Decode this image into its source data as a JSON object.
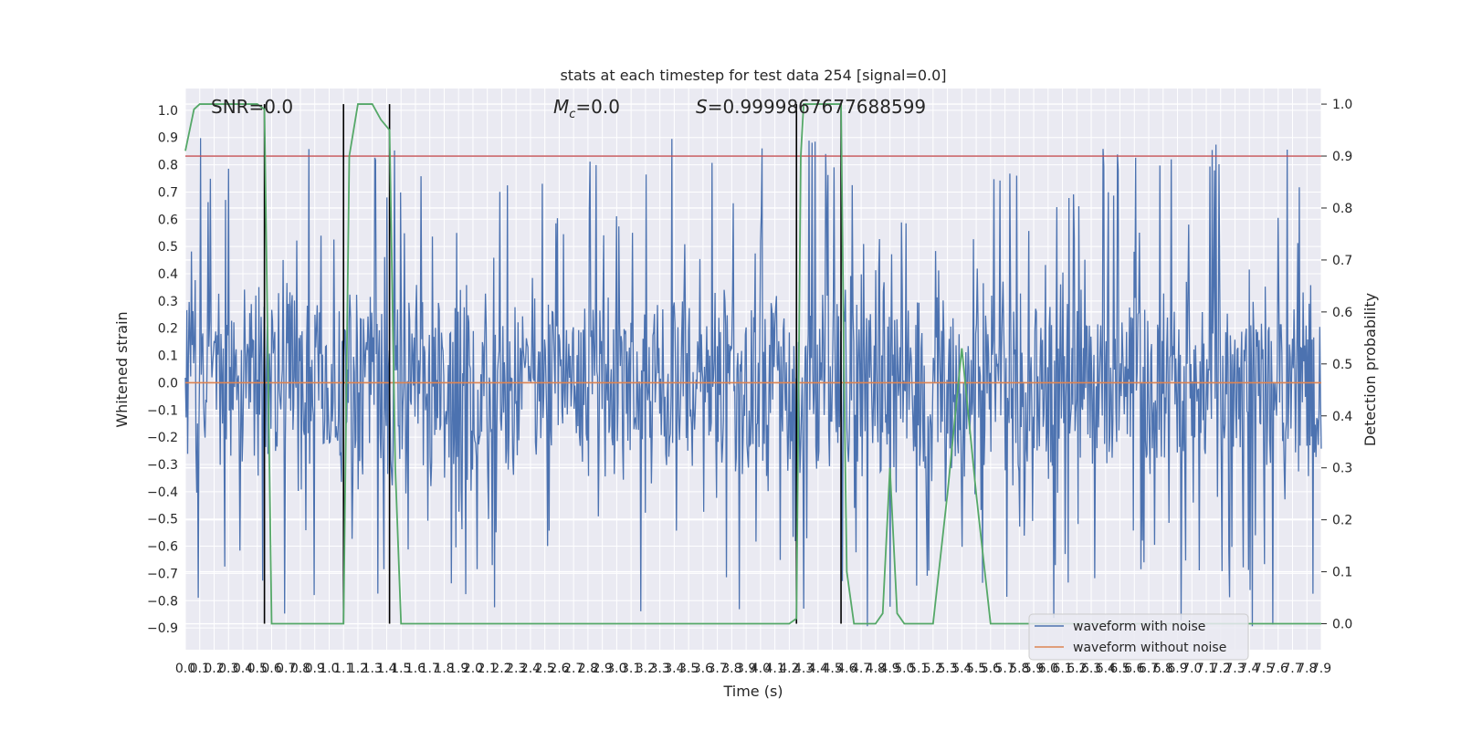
{
  "chart_data": {
    "type": "line",
    "title": "stats at each timestep for test data 254 [signal=0.0]",
    "xlabel": "Time (s)",
    "ylabel": "Whitened strain",
    "y2label": "Detection probability",
    "xlim": [
      0.0,
      7.9
    ],
    "ylim": [
      -0.98,
      1.08
    ],
    "y2lim": [
      -0.05,
      1.03
    ],
    "x_ticks": [
      "0.0",
      "0.1",
      "0.2",
      "0.3",
      "0.4",
      "0.5",
      "0.6",
      "0.7",
      "0.8",
      "0.9",
      "1.0",
      "1.1",
      "1.2",
      "1.3",
      "1.4",
      "1.5",
      "1.6",
      "1.7",
      "1.8",
      "1.9",
      "2.0",
      "2.1",
      "2.2",
      "2.3",
      "2.4",
      "2.5",
      "2.6",
      "2.7",
      "2.8",
      "2.9",
      "3.0",
      "3.1",
      "3.2",
      "3.3",
      "3.4",
      "3.5",
      "3.6",
      "3.7",
      "3.8",
      "3.9",
      "4.0",
      "4.1",
      "4.2",
      "4.3",
      "4.4",
      "4.5",
      "4.6",
      "4.7",
      "4.8",
      "4.9",
      "5.0",
      "5.1",
      "5.2",
      "5.3",
      "5.4",
      "5.5",
      "5.6",
      "5.7",
      "5.8",
      "5.9",
      "6.0",
      "6.1",
      "6.2",
      "6.3",
      "6.4",
      "6.5",
      "6.6",
      "6.7",
      "6.8",
      "6.9",
      "7.0",
      "7.1",
      "7.2",
      "7.3",
      "7.4",
      "7.5",
      "7.6",
      "7.7",
      "7.8",
      "7.9"
    ],
    "y_ticks": [
      "−0.9",
      "−0.8",
      "−0.7",
      "−0.6",
      "−0.5",
      "−0.4",
      "−0.3",
      "−0.2",
      "−0.1",
      "0.0",
      "0.1",
      "0.2",
      "0.3",
      "0.4",
      "0.5",
      "0.6",
      "0.7",
      "0.8",
      "0.9",
      "1.0"
    ],
    "y2_ticks": [
      "0.0",
      "0.1",
      "0.2",
      "0.3",
      "0.4",
      "0.5",
      "0.6",
      "0.7",
      "0.8",
      "0.9",
      "1.0"
    ],
    "annotations": {
      "snr": "SNR=0.0",
      "mc_symbol": "M",
      "mc_sub": "c",
      "mc_value": "=0.0",
      "s_symbol": "S",
      "s_value": "=0.9999867677688599"
    },
    "threshold": 0.9,
    "event_lines": [
      0.55,
      1.1,
      1.42,
      4.25,
      4.56
    ],
    "series": [
      {
        "name": "waveform with noise",
        "color": "#4c72b0",
        "kind": "noise",
        "typical_amplitude": 0.45,
        "extreme_amplitude": 0.9
      },
      {
        "name": "waveform without noise",
        "color": "#dd8452",
        "values": [
          0.0,
          0.0
        ]
      }
    ],
    "detection_probability": {
      "color": "#55a868",
      "x": [
        0.0,
        0.06,
        0.1,
        0.2,
        0.3,
        0.4,
        0.5,
        0.55,
        0.6,
        0.7,
        0.8,
        0.9,
        1.0,
        1.05,
        1.1,
        1.14,
        1.2,
        1.25,
        1.3,
        1.36,
        1.42,
        1.46,
        1.5,
        1.6,
        1.7,
        1.8,
        1.9,
        2.0,
        2.2,
        2.4,
        2.6,
        2.7,
        2.8,
        2.9,
        3.2,
        3.6,
        4.0,
        4.2,
        4.25,
        4.28,
        4.3,
        4.4,
        4.5,
        4.56,
        4.58,
        4.6,
        4.65,
        4.7,
        4.8,
        4.85,
        4.9,
        4.95,
        5.0,
        5.1,
        5.2,
        5.3,
        5.4,
        5.5,
        5.6,
        5.7,
        5.8,
        6.0,
        6.5,
        7.0,
        7.5,
        7.9
      ],
      "y": [
        0.91,
        0.99,
        1.0,
        1.0,
        1.0,
        1.0,
        1.0,
        0.99,
        0.0,
        0.0,
        0.0,
        0.0,
        0.0,
        0.0,
        0.0,
        0.9,
        1.0,
        1.0,
        1.0,
        0.97,
        0.95,
        0.3,
        0.0,
        0.0,
        0.0,
        0.0,
        0.0,
        0.0,
        0.0,
        0.0,
        0.0,
        0.0,
        0.0,
        0.0,
        0.0,
        0.0,
        0.0,
        0.0,
        0.01,
        0.9,
        1.0,
        1.0,
        1.0,
        1.0,
        0.5,
        0.1,
        0.0,
        0.0,
        0.0,
        0.02,
        0.3,
        0.02,
        0.0,
        0.0,
        0.0,
        0.25,
        0.53,
        0.25,
        0.0,
        0.0,
        0.0,
        0.0,
        0.0,
        0.0,
        0.0,
        0.0
      ]
    },
    "threshold_color": "#c44e52",
    "grid": true,
    "legend_position": "lower-right"
  }
}
